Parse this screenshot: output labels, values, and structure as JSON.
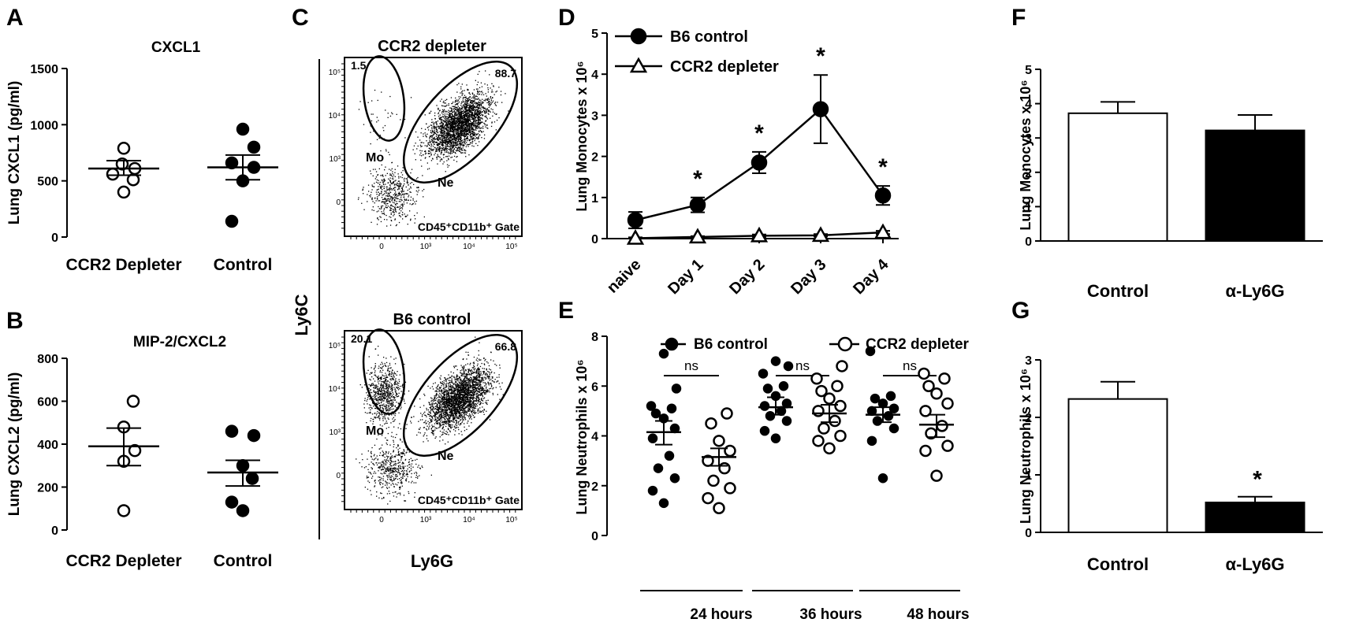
{
  "figure": {
    "panel_letters": [
      "A",
      "B",
      "C",
      "D",
      "E",
      "F",
      "G"
    ]
  },
  "chart_data": [
    {
      "panel": "A",
      "type": "scatter",
      "title": "CXCL1",
      "ylabel": "Lung CXCL1 (pg/ml)",
      "categories": [
        "CCR2 Depleter",
        "Control"
      ],
      "ylim": [
        0,
        1500
      ],
      "yticks": [
        "0",
        "500",
        "1000",
        "1500"
      ],
      "series": [
        {
          "marker": "open",
          "values": [
            400,
            510,
            560,
            610,
            650,
            790
          ],
          "mean": 610,
          "sem_low": 550,
          "sem_high": 680
        },
        {
          "marker": "filled",
          "values": [
            140,
            500,
            620,
            660,
            800,
            960
          ],
          "mean": 620,
          "sem_low": 510,
          "sem_high": 730
        }
      ]
    },
    {
      "panel": "B",
      "type": "scatter",
      "title": "MIP-2/CXCL2",
      "ylabel": "Lung CXCL2 (pg/ml)",
      "categories": [
        "CCR2 Depleter",
        "Control"
      ],
      "ylim": [
        0,
        800
      ],
      "yticks": [
        "0",
        "200",
        "400",
        "600",
        "800"
      ],
      "series": [
        {
          "marker": "open",
          "values": [
            90,
            320,
            370,
            480,
            600
          ],
          "mean": 390,
          "sem_low": 300,
          "sem_high": 475
        },
        {
          "marker": "filled",
          "values": [
            90,
            130,
            240,
            300,
            440,
            460
          ],
          "mean": 268,
          "sem_low": 205,
          "sem_high": 325
        }
      ]
    },
    {
      "panel": "C",
      "type": "scatter",
      "ylabel": "Ly6C",
      "xlabel": "Ly6G",
      "xticks": [
        "0",
        "10³",
        "10⁴",
        "10⁵"
      ],
      "yticks": [
        "10⁵",
        "10⁴",
        "10³",
        "0"
      ],
      "plots": [
        {
          "title": "CCR2 depleter",
          "mo_pct": "1.5",
          "ne_pct": "88.7",
          "mo_label": "Mo",
          "ne_label": "Ne",
          "gate": "CD45⁺CD11b⁺ Gate"
        },
        {
          "title": "B6 control",
          "mo_pct": "20.1",
          "ne_pct": "66.8",
          "mo_label": "Mo",
          "ne_label": "Ne",
          "gate": "CD45⁺CD11b⁺ Gate"
        }
      ]
    },
    {
      "panel": "D",
      "type": "line",
      "ylabel": "Lung Monocytes x 10⁶",
      "categories": [
        "naive",
        "Day 1",
        "Day 2",
        "Day 3",
        "Day 4"
      ],
      "ylim": [
        0,
        5
      ],
      "yticks": [
        "0",
        "1",
        "2",
        "3",
        "4",
        "5"
      ],
      "series": [
        {
          "name": "B6 control",
          "marker": "filled-circle",
          "values": [
            0.45,
            0.82,
            1.85,
            3.15,
            1.05
          ],
          "err": [
            0.2,
            0.18,
            0.26,
            0.83,
            0.23
          ]
        },
        {
          "name": "CCR2 depleter",
          "marker": "open-triangle",
          "values": [
            0.01,
            0.04,
            0.07,
            0.08,
            0.15
          ],
          "err": [
            0.02,
            0.02,
            0.03,
            0.03,
            0.04
          ]
        }
      ],
      "significance": [
        "",
        "*",
        "*",
        "*",
        "*"
      ]
    },
    {
      "panel": "E",
      "type": "scatter",
      "ylabel": "Lung Neutrophils x 10⁶",
      "groups": [
        "24 hours",
        "36 hours",
        "48 hours"
      ],
      "ylim": [
        0,
        8
      ],
      "yticks": [
        "0",
        "2",
        "4",
        "6",
        "8"
      ],
      "legend": [
        "B6 control",
        "CCR2 depleter"
      ],
      "comparison_labels": [
        "ns",
        "ns",
        "ns"
      ],
      "series": [
        {
          "name": "B6 control",
          "marker": "filled",
          "groups": [
            {
              "values": [
                1.3,
                1.8,
                2.3,
                2.7,
                3.2,
                3.9,
                4.3,
                4.7,
                4.9,
                5.1,
                5.2,
                5.9,
                7.3
              ],
              "mean": 4.15,
              "sem_low": 3.65,
              "sem_high": 4.6
            },
            {
              "values": [
                3.9,
                4.2,
                4.6,
                4.8,
                5.0,
                5.2,
                5.3,
                5.6,
                5.9,
                6.0,
                6.5,
                6.8,
                7.0
              ],
              "mean": 5.15,
              "sem_low": 4.85,
              "sem_high": 5.55
            },
            {
              "values": [
                2.3,
                3.8,
                4.3,
                4.6,
                4.8,
                5.0,
                5.1,
                5.3,
                5.5,
                5.6,
                7.4
              ],
              "mean": 4.85,
              "sem_low": 4.55,
              "sem_high": 5.15
            }
          ]
        },
        {
          "name": "CCR2 depleter",
          "marker": "open",
          "groups": [
            {
              "values": [
                1.1,
                1.5,
                1.9,
                2.2,
                2.7,
                3.0,
                3.4,
                3.8,
                4.5,
                4.9
              ],
              "mean": 3.15,
              "sem_low": 2.8,
              "sem_high": 3.5
            },
            {
              "values": [
                3.5,
                3.8,
                4.0,
                4.3,
                4.6,
                5.0,
                5.2,
                5.5,
                5.8,
                6.0,
                6.3,
                6.8
              ],
              "mean": 4.9,
              "sem_low": 4.55,
              "sem_high": 5.25
            },
            {
              "values": [
                2.4,
                3.4,
                3.6,
                4.1,
                4.4,
                5.0,
                5.3,
                5.7,
                6.0,
                6.3,
                6.5
              ],
              "mean": 4.45,
              "sem_low": 3.95,
              "sem_high": 4.85
            }
          ]
        }
      ]
    },
    {
      "panel": "F",
      "type": "bar",
      "ylabel": "Lung Monocytes x 10⁶",
      "categories": [
        "Control",
        "α-Ly6G"
      ],
      "ylim": [
        0,
        5
      ],
      "yticks": [
        "0",
        "1",
        "2",
        "3",
        "4",
        "5"
      ],
      "values": [
        3.72,
        3.22
      ],
      "err": [
        0.33,
        0.45
      ],
      "fills": [
        "#ffffff",
        "#000000"
      ]
    },
    {
      "panel": "G",
      "type": "bar",
      "ylabel": "Lung Neutrophils x 10⁶",
      "categories": [
        "Control",
        "α-Ly6G"
      ],
      "ylim": [
        0,
        3
      ],
      "yticks": [
        "0",
        "1",
        "2",
        "3"
      ],
      "values": [
        2.32,
        0.52
      ],
      "err": [
        0.3,
        0.1
      ],
      "fills": [
        "#ffffff",
        "#000000"
      ],
      "significance": [
        "",
        "*"
      ]
    }
  ]
}
